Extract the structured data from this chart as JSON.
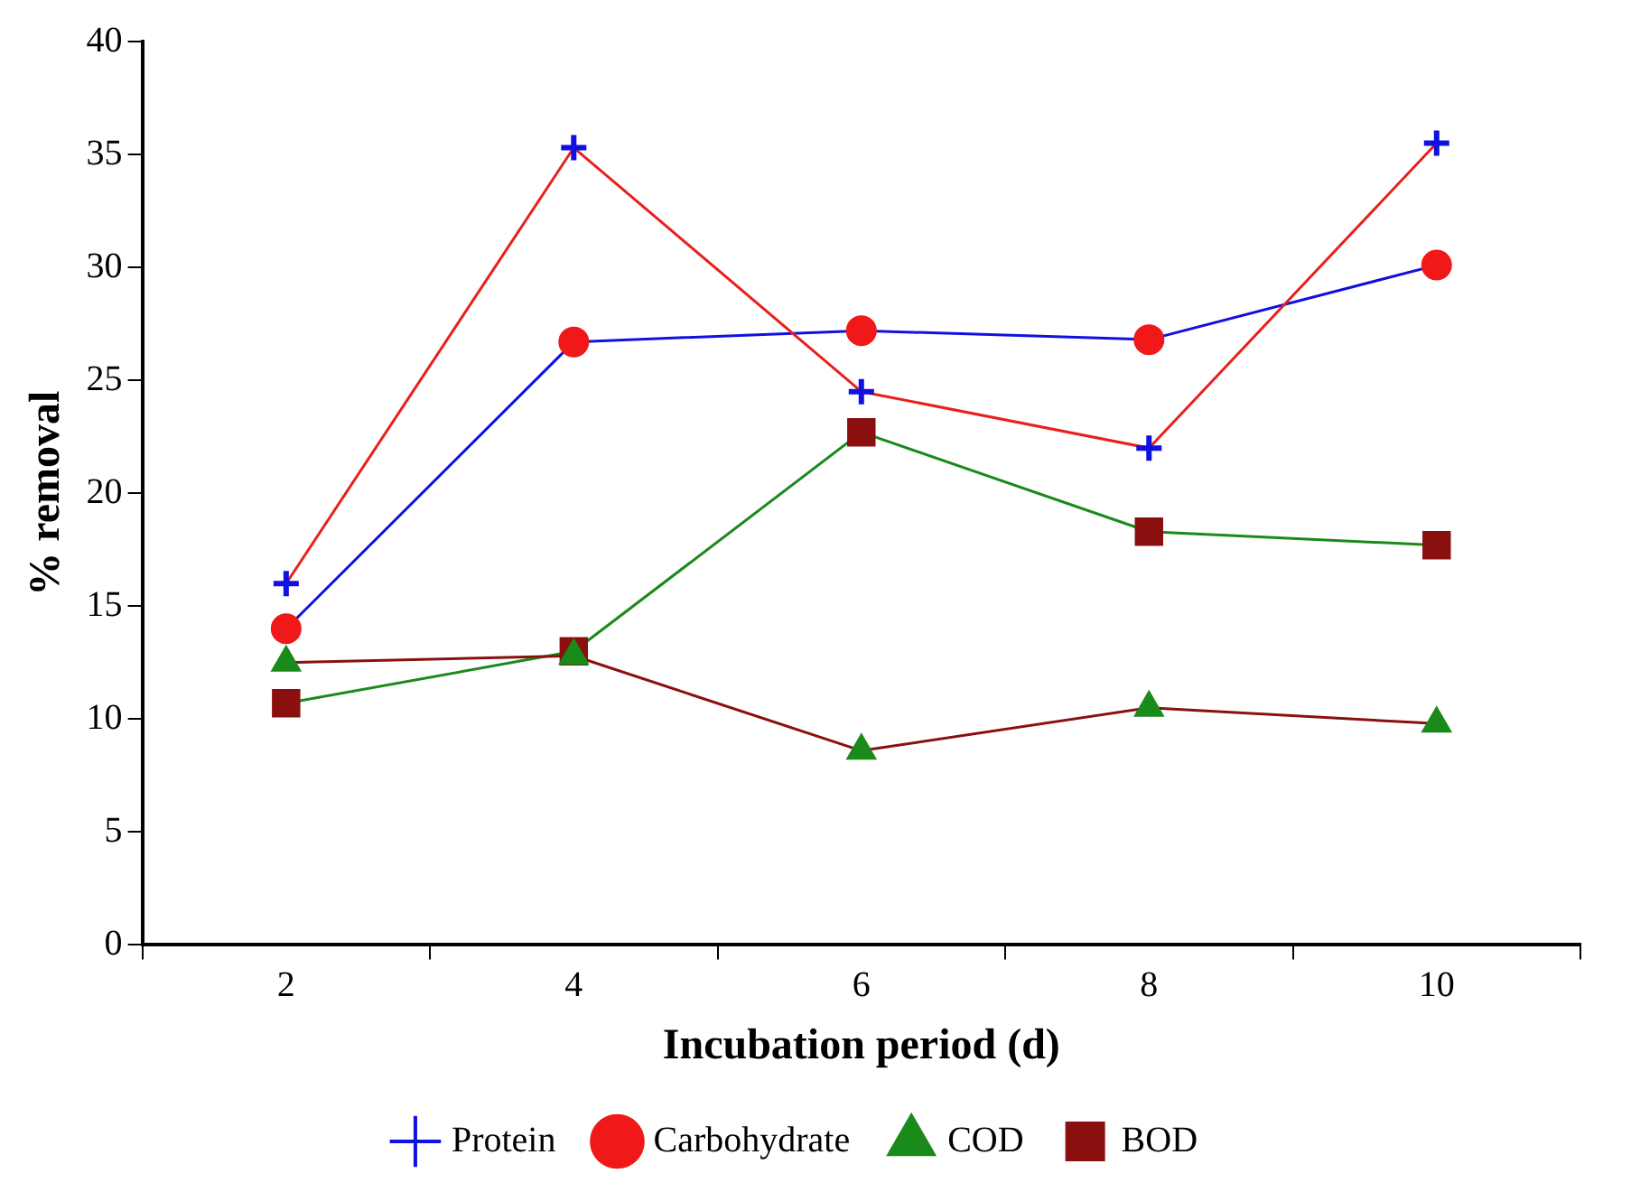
{
  "chart_data": {
    "type": "line",
    "xlabel": "Incubation period (d)",
    "ylabel": "% removal",
    "categories": [
      "2",
      "4",
      "6",
      "8",
      "10"
    ],
    "series": [
      {
        "name": "Protein",
        "color": "#e8201c",
        "colors": [
          "#1010e0",
          "#1010e0",
          "#1010e0",
          "#1010e0",
          "#1010e0"
        ],
        "marker": "cross",
        "values": [
          16.0,
          35.3,
          24.5,
          22.0,
          35.5
        ]
      },
      {
        "name": "Carbohydrate",
        "color": "#1010e0",
        "colors": [
          "#f01818",
          "#f01818",
          "#f01818",
          "#f01818",
          "#f01818"
        ],
        "marker": "circle",
        "values": [
          14.0,
          26.7,
          27.2,
          26.8,
          30.1
        ]
      },
      {
        "name": "COD",
        "color": "#8a1010",
        "colors": [
          "#1a8a1a",
          "#1a8a1a",
          "#1a8a1a",
          "#1a8a1a",
          "#1a8a1a"
        ],
        "marker": "triangle",
        "values": [
          12.5,
          12.8,
          8.6,
          10.5,
          9.8
        ]
      },
      {
        "name": "BOD",
        "color": "#1a8a1a",
        "colors": [
          "#8a1010",
          "#8a1010",
          "#8a1010",
          "#8a1010",
          "#8a1010"
        ],
        "marker": "square",
        "values": [
          10.7,
          13.0,
          22.7,
          18.3,
          17.7
        ]
      }
    ],
    "ylim": [
      0,
      40
    ],
    "yticks": [
      0,
      5,
      10,
      15,
      20,
      25,
      30,
      35,
      40
    ],
    "grid": false,
    "legend": "bottom",
    "line_style": "solid"
  }
}
